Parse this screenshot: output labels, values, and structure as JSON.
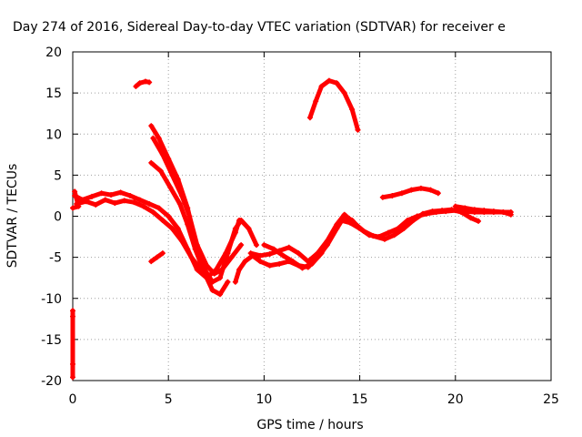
{
  "chart_data": {
    "type": "scatter",
    "title": "Day 274 of 2016, Sidereal Day-to-day VTEC variation (SDTVAR) for receiver e",
    "xlabel": "GPS time / hours",
    "ylabel": "SDTVAR / TECUs",
    "xlim": [
      0,
      25
    ],
    "ylim": [
      -20,
      20
    ],
    "xticks": [
      0,
      5,
      10,
      15,
      20,
      25
    ],
    "yticks": [
      -20,
      -15,
      -10,
      -5,
      0,
      5,
      10,
      15,
      20
    ],
    "grid": true,
    "marker_color": "#ff0000",
    "series": [
      {
        "points": [
          [
            3.3,
            15.8
          ],
          [
            3.5,
            16.2
          ],
          [
            3.8,
            16.4
          ],
          [
            4.0,
            16.3
          ]
        ]
      },
      {
        "points": [
          [
            4.1,
            11.0
          ],
          [
            4.5,
            9.5
          ],
          [
            5.0,
            7.0
          ],
          [
            5.5,
            4.5
          ],
          [
            6.0,
            1.0
          ],
          [
            6.4,
            -3.0
          ],
          [
            6.9,
            -6.5
          ],
          [
            7.3,
            -8.0
          ],
          [
            7.7,
            -7.5
          ],
          [
            8.1,
            -4.5
          ],
          [
            8.5,
            -1.5
          ],
          [
            8.8,
            -0.5
          ],
          [
            9.2,
            -1.5
          ],
          [
            9.6,
            -3.5
          ]
        ]
      },
      {
        "points": [
          [
            4.1,
            6.5
          ],
          [
            4.6,
            5.5
          ],
          [
            5.1,
            3.5
          ],
          [
            5.6,
            1.5
          ],
          [
            6.0,
            -1.0
          ],
          [
            6.4,
            -4.0
          ],
          [
            6.9,
            -7.0
          ],
          [
            7.3,
            -9.0
          ],
          [
            7.7,
            -9.5
          ],
          [
            8.1,
            -8.0
          ]
        ]
      },
      {
        "points": [
          [
            4.2,
            9.5
          ],
          [
            4.7,
            7.5
          ],
          [
            5.2,
            5.0
          ],
          [
            5.7,
            2.5
          ],
          [
            6.1,
            0.0
          ],
          [
            6.5,
            -3.5
          ],
          [
            7.0,
            -6.0
          ],
          [
            7.4,
            -7.0
          ],
          [
            7.8,
            -6.5
          ],
          [
            8.3,
            -5.0
          ],
          [
            8.8,
            -3.5
          ]
        ]
      },
      {
        "points": [
          [
            0.1,
            2.5
          ],
          [
            0.5,
            2.0
          ],
          [
            1.0,
            2.4
          ],
          [
            1.5,
            2.8
          ],
          [
            2.0,
            2.6
          ],
          [
            2.5,
            2.9
          ],
          [
            3.0,
            2.5
          ],
          [
            3.5,
            2.0
          ],
          [
            4.0,
            1.5
          ],
          [
            4.5,
            1.0
          ],
          [
            5.0,
            0.0
          ],
          [
            5.5,
            -1.5
          ],
          [
            6.0,
            -4.0
          ],
          [
            6.5,
            -6.5
          ],
          [
            7.0,
            -7.5
          ],
          [
            7.5,
            -6.5
          ],
          [
            8.0,
            -4.5
          ],
          [
            8.5,
            -2.0
          ],
          [
            8.7,
            -0.5
          ]
        ]
      },
      {
        "points": [
          [
            0.2,
            1.5
          ],
          [
            0.7,
            1.8
          ],
          [
            1.2,
            1.4
          ],
          [
            1.7,
            2.0
          ],
          [
            2.2,
            1.6
          ],
          [
            2.7,
            1.9
          ],
          [
            3.2,
            1.7
          ],
          [
            3.7,
            1.2
          ],
          [
            4.2,
            0.5
          ],
          [
            4.7,
            -0.5
          ],
          [
            5.2,
            -1.5
          ],
          [
            5.7,
            -3.0
          ],
          [
            6.2,
            -5.0
          ],
          [
            6.7,
            -6.5
          ],
          [
            7.2,
            -7.8
          ]
        ]
      },
      {
        "points": [
          [
            0.0,
            1.0
          ],
          [
            0.3,
            1.2
          ],
          [
            0.1,
            3.0
          ]
        ]
      },
      {
        "points": [
          [
            4.1,
            -5.5
          ],
          [
            4.4,
            -5.0
          ],
          [
            4.7,
            -4.5
          ]
        ]
      },
      {
        "points": [
          [
            8.5,
            -8.0
          ],
          [
            8.7,
            -6.5
          ],
          [
            9.0,
            -5.5
          ],
          [
            9.4,
            -4.8
          ],
          [
            9.8,
            -5.5
          ],
          [
            10.3,
            -6.0
          ],
          [
            10.8,
            -5.8
          ],
          [
            11.3,
            -5.5
          ],
          [
            11.8,
            -6.0
          ],
          [
            12.3,
            -6.2
          ],
          [
            12.8,
            -5.0
          ],
          [
            13.3,
            -3.5
          ],
          [
            13.8,
            -1.5
          ],
          [
            14.2,
            0.0
          ],
          [
            14.6,
            -0.5
          ],
          [
            15.0,
            -1.5
          ],
          [
            15.5,
            -2.3
          ],
          [
            16.0,
            -2.5
          ],
          [
            16.5,
            -2.0
          ],
          [
            17.0,
            -1.5
          ],
          [
            17.5,
            -0.5
          ],
          [
            18.0,
            0.0
          ],
          [
            18.5,
            0.3
          ],
          [
            19.0,
            0.5
          ],
          [
            19.5,
            0.6
          ],
          [
            20.0,
            0.7
          ],
          [
            20.5,
            0.6
          ],
          [
            21.0,
            0.5
          ],
          [
            21.5,
            0.5
          ],
          [
            22.0,
            0.5
          ],
          [
            22.5,
            0.5
          ],
          [
            22.9,
            0.2
          ]
        ]
      },
      {
        "points": [
          [
            9.3,
            -4.5
          ],
          [
            9.8,
            -4.8
          ],
          [
            10.3,
            -4.6
          ],
          [
            10.8,
            -4.2
          ],
          [
            11.3,
            -3.8
          ],
          [
            11.8,
            -4.5
          ],
          [
            12.3,
            -5.5
          ],
          [
            12.8,
            -4.5
          ],
          [
            13.3,
            -3.0
          ],
          [
            13.8,
            -1.0
          ],
          [
            14.2,
            0.2
          ],
          [
            14.7,
            -0.8
          ],
          [
            15.2,
            -1.8
          ],
          [
            15.7,
            -2.4
          ],
          [
            16.3,
            -2.8
          ],
          [
            16.8,
            -2.3
          ],
          [
            17.3,
            -1.5
          ],
          [
            17.8,
            -0.5
          ],
          [
            18.3,
            0.3
          ],
          [
            18.8,
            0.6
          ],
          [
            19.3,
            0.7
          ],
          [
            19.8,
            0.8
          ],
          [
            20.3,
            0.5
          ],
          [
            20.8,
            -0.2
          ],
          [
            21.2,
            -0.6
          ]
        ]
      },
      {
        "points": [
          [
            10.0,
            -3.5
          ],
          [
            10.5,
            -4.0
          ],
          [
            11.0,
            -4.8
          ],
          [
            11.5,
            -5.5
          ],
          [
            12.0,
            -6.3
          ],
          [
            12.5,
            -5.8
          ],
          [
            13.0,
            -4.5
          ],
          [
            13.5,
            -2.5
          ],
          [
            14.0,
            -0.5
          ],
          [
            14.5,
            -0.8
          ],
          [
            15.0,
            -1.5
          ]
        ]
      },
      {
        "points": [
          [
            12.4,
            12.0
          ],
          [
            12.7,
            14.0
          ],
          [
            13.0,
            15.8
          ],
          [
            13.4,
            16.5
          ],
          [
            13.8,
            16.2
          ],
          [
            14.2,
            15.0
          ],
          [
            14.6,
            13.0
          ],
          [
            14.9,
            10.5
          ]
        ]
      },
      {
        "points": [
          [
            16.2,
            2.3
          ],
          [
            16.7,
            2.5
          ],
          [
            17.2,
            2.8
          ],
          [
            17.7,
            3.2
          ],
          [
            18.2,
            3.4
          ],
          [
            18.7,
            3.2
          ],
          [
            19.1,
            2.8
          ]
        ]
      },
      {
        "points": [
          [
            20.0,
            1.2
          ],
          [
            20.5,
            1.0
          ],
          [
            21.0,
            0.8
          ],
          [
            21.5,
            0.7
          ],
          [
            22.0,
            0.6
          ],
          [
            22.5,
            0.5
          ],
          [
            22.9,
            0.5
          ]
        ]
      },
      {
        "points": [
          [
            0.0,
            -11.5
          ],
          [
            0.0,
            -12.2
          ],
          [
            0.0,
            -18.0
          ],
          [
            0.0,
            -19.6
          ]
        ]
      }
    ]
  }
}
